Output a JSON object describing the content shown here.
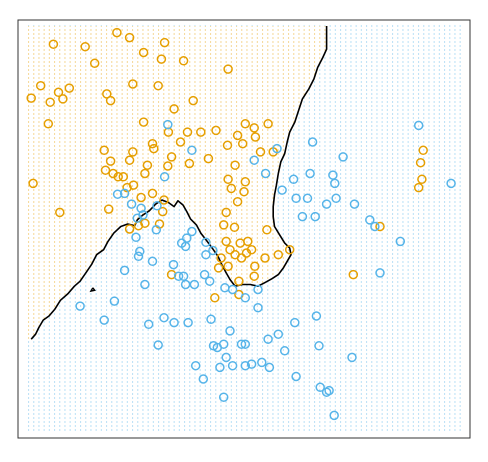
{
  "chart_data": {
    "type": "scatter",
    "title": "",
    "xlabel": "",
    "ylabel": "",
    "axes_visible": false,
    "xlim": [
      -2.6,
      4.2
    ],
    "ylim": [
      -2.0,
      2.9
    ],
    "grid": false,
    "background_grid": {
      "style": "dotted",
      "x_step": 0.084,
      "y_step": 0.064
    },
    "colors": {
      "orange": "#E69F00",
      "blue": "#56B4E9",
      "boundary": "#000000",
      "frame": "#333333"
    },
    "decision_boundary": {
      "main": [
        [
          -2.55,
          -0.88
        ],
        [
          -2.48,
          -0.82
        ],
        [
          -2.43,
          -0.74
        ],
        [
          -2.36,
          -0.65
        ],
        [
          -2.27,
          -0.6
        ],
        [
          -2.18,
          -0.52
        ],
        [
          -2.09,
          -0.41
        ],
        [
          -1.97,
          -0.33
        ],
        [
          -1.87,
          -0.24
        ],
        [
          -1.78,
          -0.18
        ],
        [
          -1.69,
          -0.08
        ],
        [
          -1.6,
          0.02
        ],
        [
          -1.52,
          0.14
        ],
        [
          -1.41,
          0.2
        ],
        [
          -1.34,
          0.3
        ],
        [
          -1.25,
          0.4
        ],
        [
          -1.14,
          0.48
        ],
        [
          -1.03,
          0.51
        ],
        [
          -0.92,
          0.49
        ],
        [
          -0.88,
          0.56
        ],
        [
          -0.79,
          0.62
        ],
        [
          -0.69,
          0.67
        ],
        [
          -0.59,
          0.75
        ],
        [
          -0.49,
          0.8
        ],
        [
          -0.39,
          0.77
        ],
        [
          -0.3,
          0.72
        ],
        [
          -0.24,
          0.79
        ],
        [
          -0.16,
          0.74
        ],
        [
          -0.1,
          0.66
        ],
        [
          -0.04,
          0.57
        ],
        [
          0.05,
          0.5
        ],
        [
          0.12,
          0.4
        ],
        [
          0.22,
          0.3
        ],
        [
          0.3,
          0.22
        ],
        [
          0.39,
          0.12
        ],
        [
          0.45,
          0.02
        ],
        [
          0.52,
          -0.08
        ],
        [
          0.58,
          -0.16
        ],
        [
          0.66,
          -0.24
        ],
        [
          0.78,
          -0.22
        ],
        [
          0.9,
          -0.22
        ],
        [
          1.02,
          -0.24
        ],
        [
          1.12,
          -0.2
        ],
        [
          1.24,
          -0.15
        ],
        [
          1.34,
          -0.1
        ],
        [
          1.42,
          -0.02
        ],
        [
          1.48,
          0.06
        ],
        [
          1.54,
          0.14
        ],
        [
          1.52,
          0.22
        ],
        [
          1.44,
          0.28
        ],
        [
          1.36,
          0.38
        ],
        [
          1.28,
          0.48
        ],
        [
          1.26,
          0.6
        ],
        [
          1.26,
          0.72
        ],
        [
          1.28,
          0.86
        ],
        [
          1.31,
          0.98
        ],
        [
          1.34,
          1.12
        ],
        [
          1.38,
          1.26
        ],
        [
          1.44,
          1.36
        ],
        [
          1.48,
          1.5
        ],
        [
          1.52,
          1.62
        ],
        [
          1.6,
          1.74
        ],
        [
          1.66,
          1.88
        ],
        [
          1.72,
          2.02
        ],
        [
          1.82,
          2.14
        ],
        [
          1.9,
          2.26
        ],
        [
          1.96,
          2.4
        ],
        [
          2.04,
          2.52
        ],
        [
          2.1,
          2.62
        ],
        [
          2.1,
          2.76
        ],
        [
          2.1,
          2.9
        ]
      ],
      "island": [
        [
          -1.58,
          -0.26
        ],
        [
          -1.55,
          -0.29
        ],
        [
          -1.61,
          -0.3
        ],
        [
          -1.58,
          -0.26
        ]
      ]
    },
    "series": [
      {
        "points": [
          [
            -2.2,
            2.68
          ],
          [
            -1.7,
            2.65
          ],
          [
            -1.2,
            2.82
          ],
          [
            -1.0,
            2.76
          ],
          [
            -0.45,
            2.7
          ],
          [
            -0.78,
            2.58
          ],
          [
            -0.5,
            2.5
          ],
          [
            -0.15,
            2.48
          ],
          [
            -1.55,
            2.45
          ],
          [
            -2.4,
            2.18
          ],
          [
            -2.55,
            2.03
          ],
          [
            -2.12,
            2.1
          ],
          [
            -1.95,
            2.15
          ],
          [
            -2.25,
            1.98
          ],
          [
            -2.05,
            2.02
          ],
          [
            -1.36,
            2.08
          ],
          [
            -1.3,
            2.0
          ],
          [
            -0.95,
            2.2
          ],
          [
            -0.55,
            2.18
          ],
          [
            0.0,
            2.0
          ],
          [
            0.55,
            2.38
          ],
          [
            -0.3,
            1.9
          ],
          [
            -0.78,
            1.74
          ],
          [
            -2.28,
            1.72
          ],
          [
            -1.4,
            1.4
          ],
          [
            -1.3,
            1.27
          ],
          [
            -0.64,
            1.48
          ],
          [
            -0.62,
            1.42
          ],
          [
            -0.39,
            1.62
          ],
          [
            -0.2,
            1.5
          ],
          [
            -0.09,
            1.62
          ],
          [
            0.12,
            1.62
          ],
          [
            0.36,
            1.64
          ],
          [
            0.7,
            1.58
          ],
          [
            0.82,
            1.72
          ],
          [
            0.96,
            1.67
          ],
          [
            0.98,
            1.56
          ],
          [
            0.78,
            1.48
          ],
          [
            0.54,
            1.46
          ],
          [
            1.18,
            1.72
          ],
          [
            1.26,
            1.38
          ],
          [
            1.06,
            1.38
          ],
          [
            0.66,
            1.22
          ],
          [
            -0.34,
            1.32
          ],
          [
            0.24,
            1.3
          ],
          [
            -0.4,
            1.21
          ],
          [
            -0.72,
            1.22
          ],
          [
            -0.76,
            1.12
          ],
          [
            -0.06,
            1.24
          ],
          [
            -0.95,
            1.38
          ],
          [
            -1.0,
            1.28
          ],
          [
            -1.1,
            1.08
          ],
          [
            -1.18,
            1.08
          ],
          [
            -1.26,
            1.12
          ],
          [
            -1.38,
            1.16
          ],
          [
            -0.94,
            0.98
          ],
          [
            -1.04,
            0.95
          ],
          [
            -0.82,
            0.83
          ],
          [
            -0.64,
            0.88
          ],
          [
            -0.46,
            0.8
          ],
          [
            -0.48,
            0.66
          ],
          [
            -0.53,
            0.51
          ],
          [
            -1.0,
            0.45
          ],
          [
            -0.86,
            0.49
          ],
          [
            -0.76,
            0.52
          ],
          [
            -2.52,
            1.0
          ],
          [
            -2.1,
            0.65
          ],
          [
            -1.33,
            0.69
          ],
          [
            0.55,
            1.05
          ],
          [
            0.6,
            0.94
          ],
          [
            0.82,
            1.02
          ],
          [
            0.8,
            0.9
          ],
          [
            0.7,
            0.78
          ],
          [
            0.52,
            0.65
          ],
          [
            0.48,
            0.5
          ],
          [
            0.65,
            0.47
          ],
          [
            0.52,
            0.3
          ],
          [
            0.74,
            0.28
          ],
          [
            0.86,
            0.3
          ],
          [
            0.58,
            0.2
          ],
          [
            0.66,
            0.14
          ],
          [
            0.44,
            0.1
          ],
          [
            0.4,
            -0.02
          ],
          [
            0.76,
            0.1
          ],
          [
            0.84,
            0.16
          ],
          [
            0.92,
            0.2
          ],
          [
            0.97,
            0.0
          ],
          [
            0.55,
            0.0
          ],
          [
            1.16,
            0.44
          ],
          [
            1.13,
            0.1
          ],
          [
            1.34,
            0.14
          ],
          [
            0.72,
            -0.18
          ],
          [
            0.72,
            -0.34
          ],
          [
            0.34,
            -0.38
          ],
          [
            -0.34,
            -0.1
          ],
          [
            0.96,
            -0.12
          ],
          [
            1.52,
            0.2
          ],
          [
            3.62,
            1.4
          ],
          [
            3.58,
            1.25
          ],
          [
            3.55,
            0.95
          ],
          [
            3.6,
            1.05
          ],
          [
            2.94,
            0.48
          ],
          [
            2.52,
            -0.1
          ]
        ]
      },
      {
        "points": [
          [
            1.32,
            1.42
          ],
          [
            1.14,
            1.12
          ],
          [
            1.84,
            1.12
          ],
          [
            2.36,
            1.32
          ],
          [
            2.23,
            1.0
          ],
          [
            2.2,
            1.1
          ],
          [
            1.58,
            1.05
          ],
          [
            1.8,
            0.82
          ],
          [
            1.62,
            0.82
          ],
          [
            2.1,
            0.75
          ],
          [
            2.25,
            0.82
          ],
          [
            2.54,
            0.75
          ],
          [
            1.92,
            0.6
          ],
          [
            1.72,
            0.6
          ],
          [
            2.78,
            0.56
          ],
          [
            2.86,
            0.48
          ],
          [
            1.4,
            0.92
          ],
          [
            0.96,
            1.28
          ],
          [
            -0.4,
            1.71
          ],
          [
            -0.02,
            1.4
          ],
          [
            -0.45,
            1.08
          ],
          [
            -0.9,
            0.35
          ],
          [
            -1.19,
            0.87
          ],
          [
            -1.08,
            0.88
          ],
          [
            -0.97,
            0.75
          ],
          [
            -0.82,
            0.7
          ],
          [
            -0.79,
            0.62
          ],
          [
            -0.57,
            0.73
          ],
          [
            -0.88,
            0.58
          ],
          [
            -0.58,
            0.44
          ],
          [
            -0.86,
            0.12
          ],
          [
            -0.84,
            0.18
          ],
          [
            -0.64,
            0.06
          ],
          [
            -0.31,
            0.02
          ],
          [
            -0.12,
            0.24
          ],
          [
            -0.18,
            0.28
          ],
          [
            -0.1,
            0.34
          ],
          [
            -0.02,
            0.42
          ],
          [
            0.2,
            0.29
          ],
          [
            0.2,
            0.14
          ],
          [
            0.31,
            0.19
          ],
          [
            -0.15,
            -0.12
          ],
          [
            -0.23,
            -0.12
          ],
          [
            -0.12,
            -0.22
          ],
          [
            0.02,
            -0.22
          ],
          [
            0.26,
            -0.18
          ],
          [
            0.18,
            -0.1
          ],
          [
            0.5,
            -0.26
          ],
          [
            0.82,
            -0.38
          ],
          [
            -0.76,
            -0.22
          ],
          [
            -1.08,
            -0.05
          ],
          [
            -1.24,
            -0.42
          ],
          [
            -0.7,
            -0.7
          ],
          [
            -0.46,
            -0.62
          ],
          [
            -0.3,
            -0.68
          ],
          [
            -0.55,
            -0.95
          ],
          [
            -0.08,
            -0.68
          ],
          [
            0.28,
            -0.64
          ],
          [
            0.32,
            -0.96
          ],
          [
            0.38,
            -0.98
          ],
          [
            0.48,
            -0.94
          ],
          [
            0.58,
            -0.78
          ],
          [
            0.76,
            -0.94
          ],
          [
            0.82,
            -0.94
          ],
          [
            1.18,
            -0.88
          ],
          [
            1.34,
            -0.82
          ],
          [
            1.44,
            -1.02
          ],
          [
            1.6,
            -0.68
          ],
          [
            1.94,
            -0.6
          ],
          [
            1.98,
            -0.96
          ],
          [
            0.04,
            -1.2
          ],
          [
            0.42,
            -1.22
          ],
          [
            0.52,
            -1.1
          ],
          [
            0.62,
            -1.2
          ],
          [
            1.08,
            -1.16
          ],
          [
            0.82,
            -1.2
          ],
          [
            0.92,
            -1.18
          ],
          [
            1.2,
            -1.22
          ],
          [
            1.62,
            -1.33
          ],
          [
            2.0,
            -1.46
          ],
          [
            2.1,
            -1.52
          ],
          [
            2.14,
            -1.5
          ],
          [
            2.22,
            -1.8
          ],
          [
            1.02,
            -0.5
          ],
          [
            0.48,
            -1.58
          ],
          [
            0.16,
            -1.36
          ],
          [
            -1.78,
            -0.48
          ],
          [
            -1.4,
            -0.65
          ],
          [
            1.88,
            1.5
          ],
          [
            2.94,
            -0.08
          ],
          [
            3.26,
            0.3
          ],
          [
            4.06,
            1.0
          ],
          [
            3.55,
            1.7
          ],
          [
            2.5,
            -1.1
          ],
          [
            0.62,
            -0.28
          ],
          [
            1.02,
            -0.28
          ]
        ]
      }
    ]
  }
}
